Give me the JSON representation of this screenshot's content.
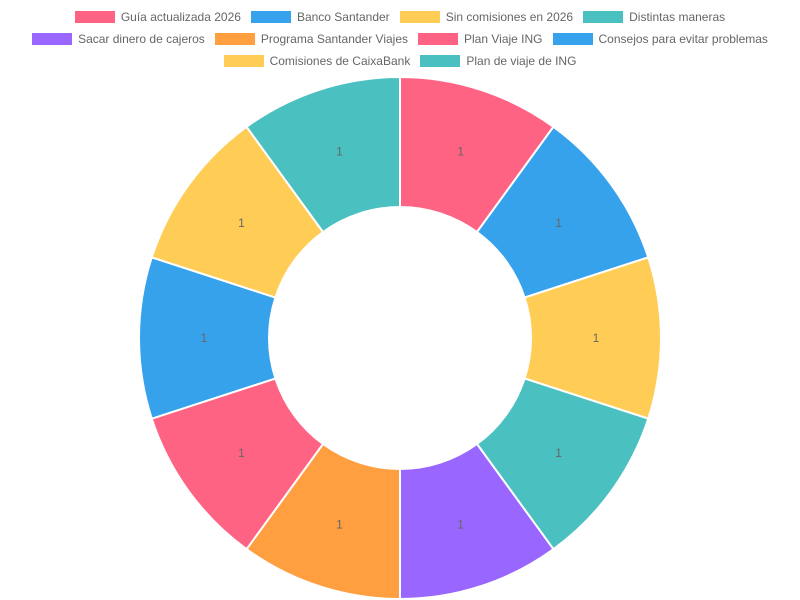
{
  "chart_data": {
    "type": "pie",
    "variant": "doughnut",
    "legend_position": "top",
    "categories": [
      "Guía actualizada 2026",
      "Banco Santander",
      "Sin comisiones en 2026",
      "Distintas maneras",
      "Sacar dinero de cajeros",
      "Programa Santander Viajes",
      "Plan Viaje ING",
      "Consejos para evitar problemas",
      "Comisiones de CaixaBank",
      "Plan de viaje de ING"
    ],
    "values": [
      1,
      1,
      1,
      1,
      1,
      1,
      1,
      1,
      1,
      1
    ],
    "data_labels": [
      "1",
      "1",
      "1",
      "1",
      "1",
      "1",
      "1",
      "1",
      "1",
      "1"
    ],
    "colors": [
      "#ff6384",
      "#36a2eb",
      "#ffcd56",
      "#4bc0c0",
      "#9966ff",
      "#ff9f40",
      "#ff6384",
      "#36a2eb",
      "#ffcd56",
      "#4bc0c0"
    ]
  }
}
